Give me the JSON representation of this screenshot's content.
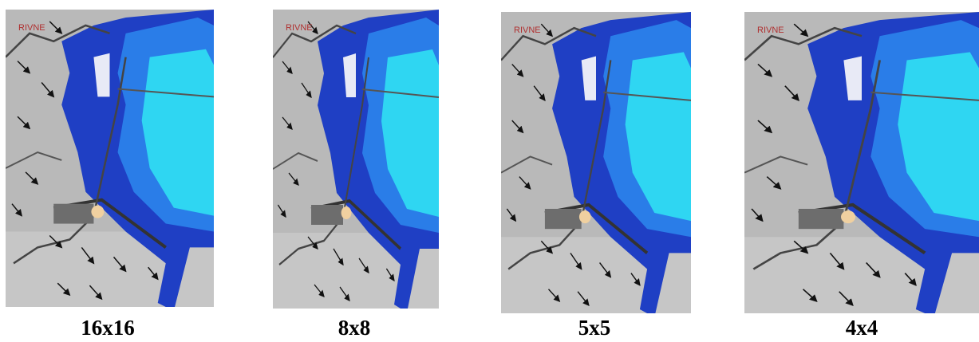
{
  "panels": [
    {
      "map_label": "RIVNE",
      "label": "16x16"
    },
    {
      "map_label": "RIVNE",
      "label": "8x8"
    },
    {
      "map_label": "RIVNE",
      "label": "5x5"
    },
    {
      "map_label": "RIVNE",
      "label": "4x4"
    }
  ]
}
